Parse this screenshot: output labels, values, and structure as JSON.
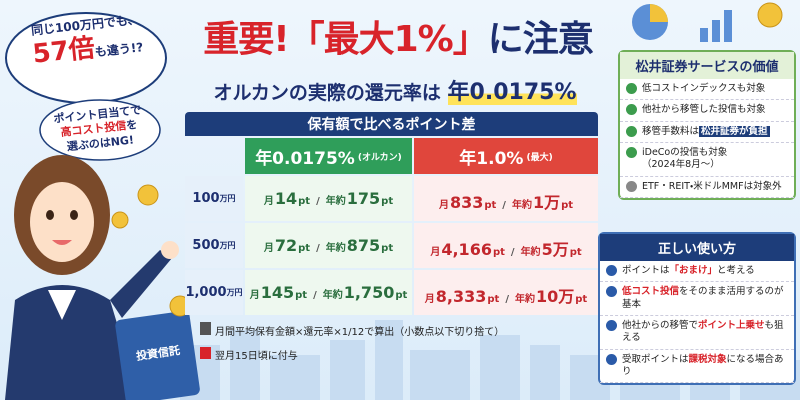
{
  "bubble": {
    "line1": "同じ100万円でも、",
    "em": "57倍",
    "line2": "も違う!?"
  },
  "header": {
    "title_em": "重要!「最大1%」",
    "title_rest": "に注意",
    "subtitle": "オルカンの実際の還元率は",
    "subtitle_em": "年0.0175%"
  },
  "warning": {
    "line1": "ポイント目当てで",
    "em": "高コスト投信",
    "mid": "を",
    "line3": "選ぶのはNG!"
  },
  "table": {
    "title": "保有額で比べるポイント差",
    "columns": [
      {
        "rate": "年0.0175%",
        "note": "(オルカン)"
      },
      {
        "rate": "年1.0%",
        "note": "(最大)"
      }
    ],
    "labels": {
      "month": "月",
      "unit": "pt",
      "sep": "/",
      "year": "年約"
    },
    "rows": [
      {
        "amount": "100",
        "unit": "万円",
        "cells": [
          {
            "month": "14",
            "year": "175"
          },
          {
            "month": "833",
            "year": "1万"
          }
        ]
      },
      {
        "amount": "500",
        "unit": "万円",
        "cells": [
          {
            "month": "72",
            "year": "875"
          },
          {
            "month": "4,166",
            "year": "5万"
          }
        ]
      },
      {
        "amount": "1,000",
        "unit": "万円",
        "cells": [
          {
            "month": "145",
            "year": "1,750"
          },
          {
            "month": "8,333",
            "year": "10万"
          }
        ]
      }
    ]
  },
  "notes": [
    "月間平均保有金額×還元率×1/12で算出（小数点以下切り捨て）",
    "翌月15日頃に付与"
  ],
  "benefits": {
    "title": "松井証券サービスの価値",
    "items": [
      {
        "pre": "低コストインデックスも対象"
      },
      {
        "pre": "他社から移管した投信も対象"
      },
      {
        "pre": "移管手数料は",
        "em": "松井証券が負担"
      },
      {
        "pre": "iDeCoの投信も対象",
        "sub": "（2024年8月〜）"
      },
      {
        "pre": "ETF・REIT・米ドルMMFは対象外"
      }
    ]
  },
  "usage": {
    "title": "正しい使い方",
    "items": [
      {
        "pre": "ポイントは",
        "em": "「おまけ」",
        "post": "と考える"
      },
      {
        "em": "低コスト投信",
        "post": "をそのまま活用するのが基本"
      },
      {
        "pre": "他社からの移管で",
        "em": "ポイント上乗せ",
        "post": "も狙える"
      },
      {
        "pre": "受取ポイントは",
        "em": "課税対象",
        "post": "になる場合あり"
      }
    ]
  },
  "book": "投資信託"
}
